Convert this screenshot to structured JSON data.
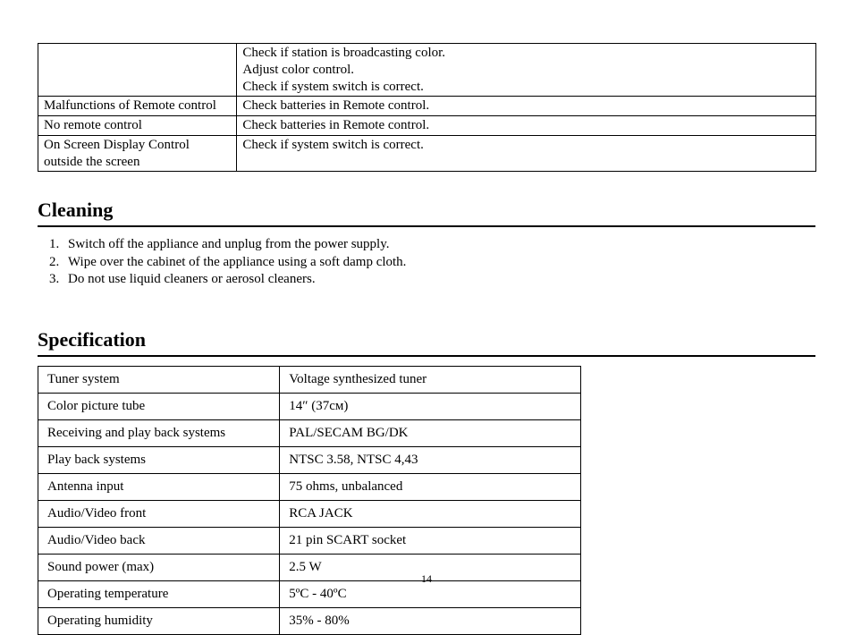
{
  "troubleshoot": {
    "rows": [
      {
        "problem": "",
        "solution_lines": [
          "Check if station is broadcasting color.",
          "Adjust color control.",
          "Check if system switch is correct."
        ]
      },
      {
        "problem": "Malfunctions of Remote control",
        "solution_lines": [
          "Check batteries in Remote control."
        ]
      },
      {
        "problem": "No remote control",
        "solution_lines": [
          "Check batteries in Remote control."
        ]
      },
      {
        "problem": "On Screen Display Control outside the screen",
        "solution_lines": [
          "Check if system switch is correct."
        ]
      }
    ]
  },
  "cleaning": {
    "title": "Cleaning",
    "items": [
      "Switch off the appliance and unplug from the power supply.",
      "Wipe over the cabinet of the appliance using a soft damp cloth.",
      "Do not use liquid cleaners or aerosol cleaners."
    ]
  },
  "specification": {
    "title": "Specification",
    "rows": [
      {
        "name": "Tuner system",
        "value": "Voltage synthesized tuner"
      },
      {
        "name": "Color picture tube",
        "value": "14″ (37см)"
      },
      {
        "name": "Receiving and play back systems",
        "value": "PAL/SECAM BG/DK"
      },
      {
        "name": "Play back systems",
        "value": "NTSC 3.58, NTSC 4,43"
      },
      {
        "name": "Antenna input",
        "value": "75 ohms, unbalanced"
      },
      {
        "name": "Audio/Video front",
        "value": "RCA JACK"
      },
      {
        "name": "Audio/Video back",
        "value": "21 pin SCART socket"
      },
      {
        "name": "Sound power (max)",
        "value": "2.5 W"
      },
      {
        "name": "Operating temperature",
        "value": "5ºC - 40ºC"
      },
      {
        "name": "Operating humidity",
        "value": "35% - 80%"
      }
    ]
  },
  "page_number": "14"
}
